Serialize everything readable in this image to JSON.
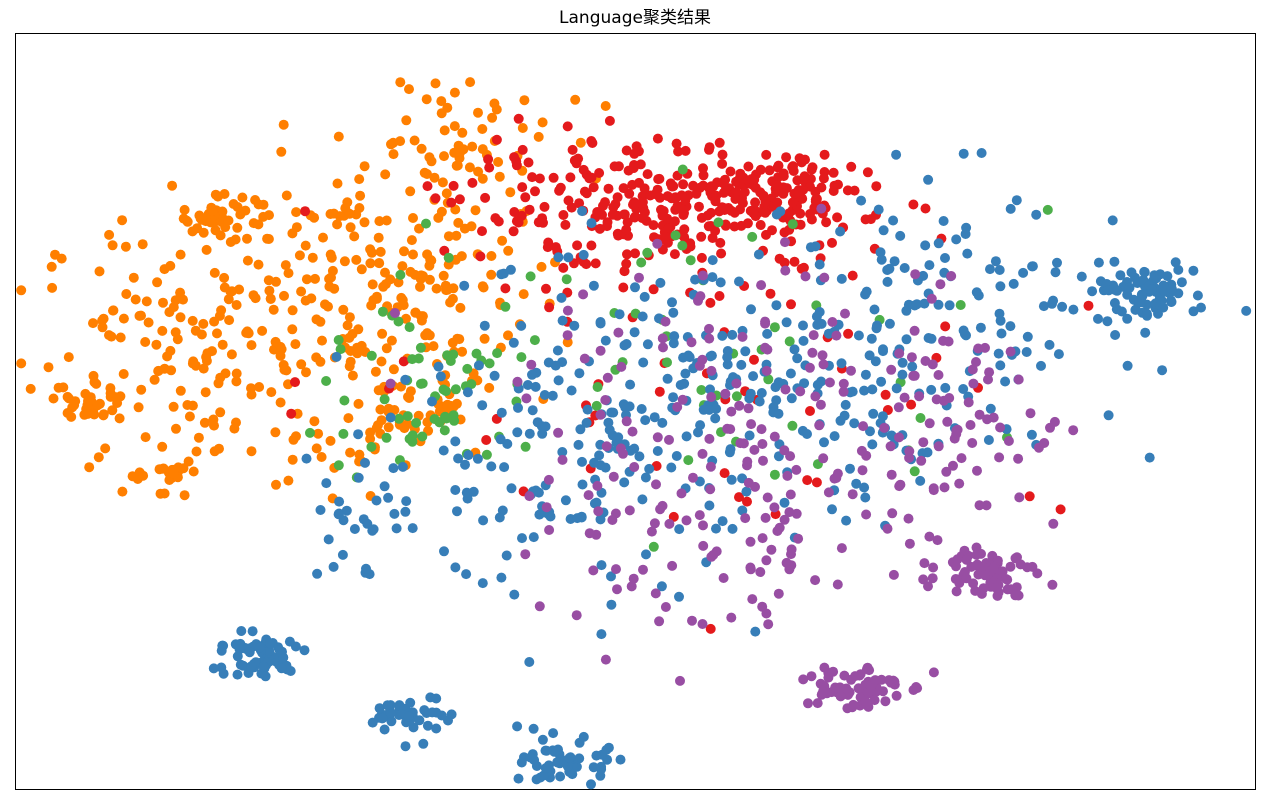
{
  "chart_data": {
    "type": "scatter",
    "title": "Language聚类结果",
    "xlabel": "",
    "ylabel": "",
    "axes_ticks": false,
    "grid": false,
    "legend": "none",
    "xlim": [
      -100,
      100
    ],
    "ylim": [
      -100,
      100
    ],
    "colors": {
      "blue": "#377eb8",
      "orange": "#ff7f00",
      "red": "#e41a1c",
      "green": "#4daf4a",
      "purple": "#984ea3"
    },
    "dense_clusters": [
      {
        "color": "blue",
        "center": [
          82.0,
          31.0
        ],
        "spread": [
          4.2,
          3.6
        ],
        "count": 80
      },
      {
        "color": "purple",
        "center": [
          57.0,
          -42.0
        ],
        "spread": [
          3.8,
          3.4
        ],
        "count": 70
      },
      {
        "color": "purple",
        "center": [
          35.0,
          -73.0
        ],
        "spread": [
          4.0,
          3.2
        ],
        "count": 70
      },
      {
        "color": "blue",
        "center": [
          -61.0,
          -65.0
        ],
        "spread": [
          3.8,
          3.0
        ],
        "count": 70
      },
      {
        "color": "blue",
        "center": [
          -36.0,
          -81.0
        ],
        "spread": [
          3.0,
          2.8
        ],
        "count": 45
      },
      {
        "color": "blue",
        "center": [
          -11.0,
          -93.0
        ],
        "spread": [
          3.4,
          3.0
        ],
        "count": 55
      },
      {
        "color": "orange",
        "center": [
          -67.0,
          52.0
        ],
        "spread": [
          3.0,
          2.3
        ],
        "count": 45
      },
      {
        "color": "orange",
        "center": [
          -88.0,
          2.0
        ],
        "spread": [
          2.5,
          2.2
        ],
        "count": 30
      },
      {
        "color": "orange",
        "center": [
          -75.0,
          -17.0
        ],
        "spread": [
          2.2,
          2.0
        ],
        "count": 20
      }
    ],
    "regions": [
      {
        "color": "orange",
        "center": [
          -70.0,
          15.0
        ],
        "spread": [
          13.0,
          18.0
        ],
        "count": 170
      },
      {
        "color": "orange",
        "center": [
          -42.0,
          35.0
        ],
        "spread": [
          12.0,
          15.0
        ],
        "count": 190
      },
      {
        "color": "orange",
        "center": [
          -28.0,
          72.0
        ],
        "spread": [
          8.0,
          9.0
        ],
        "count": 60
      },
      {
        "color": "orange",
        "center": [
          -38.0,
          0.0
        ],
        "spread": [
          9.0,
          10.0
        ],
        "count": 70
      },
      {
        "color": "red",
        "center": [
          5.0,
          53.0
        ],
        "spread": [
          16.0,
          8.5
        ],
        "count": 300
      },
      {
        "color": "red",
        "center": [
          22.0,
          58.0
        ],
        "spread": [
          8.0,
          5.0
        ],
        "count": 90
      },
      {
        "color": "red",
        "center": [
          10.0,
          10.0
        ],
        "spread": [
          30.0,
          20.0
        ],
        "count": 50
      },
      {
        "color": "green",
        "center": [
          -33.0,
          5.0
        ],
        "spread": [
          9.0,
          13.0
        ],
        "count": 55
      },
      {
        "color": "green",
        "center": [
          12.0,
          15.0
        ],
        "spread": [
          22.0,
          22.0
        ],
        "count": 55
      },
      {
        "color": "blue",
        "center": [
          -6.0,
          -5.0
        ],
        "spread": [
          14.0,
          22.0
        ],
        "count": 190
      },
      {
        "color": "blue",
        "center": [
          28.0,
          5.0
        ],
        "spread": [
          16.0,
          17.0
        ],
        "count": 150
      },
      {
        "color": "blue",
        "center": [
          52.0,
          25.0
        ],
        "spread": [
          13.0,
          18.0
        ],
        "count": 100
      },
      {
        "color": "blue",
        "center": [
          -40.0,
          -28.0
        ],
        "spread": [
          10.0,
          10.0
        ],
        "count": 40
      },
      {
        "color": "purple",
        "center": [
          22.0,
          2.0
        ],
        "spread": [
          20.0,
          20.0
        ],
        "count": 150
      },
      {
        "color": "purple",
        "center": [
          12.0,
          -42.0
        ],
        "spread": [
          14.0,
          10.0
        ],
        "count": 60
      },
      {
        "color": "purple",
        "center": [
          50.0,
          -5.0
        ],
        "spread": [
          10.0,
          16.0
        ],
        "count": 60
      }
    ]
  }
}
